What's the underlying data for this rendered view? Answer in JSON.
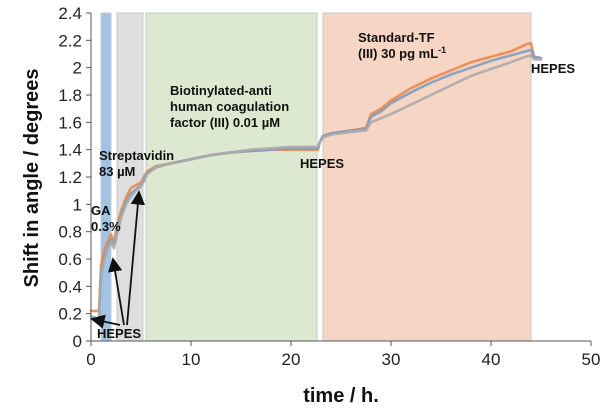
{
  "chart_data": {
    "type": "line",
    "xlabel": "time / h.",
    "ylabel": "Shift in angle / degrees",
    "xlim": [
      0,
      50
    ],
    "ylim": [
      0,
      2.4
    ],
    "x_ticks": [
      "0",
      "10",
      "20",
      "30",
      "40",
      "50"
    ],
    "y_ticks": [
      "0",
      "0.2",
      "0.4",
      "0.6",
      "0.8",
      "1",
      "1.2",
      "1.4",
      "1.6",
      "1.8",
      "2",
      "2.2",
      "2.4"
    ],
    "grid": false,
    "legend": "none",
    "regions": [
      {
        "start": 1.0,
        "end": 2.0,
        "color": "#9fc4e6"
      },
      {
        "start": 2.6,
        "end": 5.2,
        "color": "#dedede"
      },
      {
        "start": 5.5,
        "end": 22.6,
        "color": "#dce8cf"
      },
      {
        "start": 23.2,
        "end": 44.0,
        "color": "#f7d5c5"
      }
    ],
    "series": [
      {
        "color": "#e8894a",
        "x": [
          0.0,
          0.8,
          1.0,
          1.3,
          1.6,
          2.0,
          2.3,
          2.6,
          3.0,
          3.5,
          4.0,
          4.5,
          5.0,
          5.3,
          5.6,
          6.5,
          8,
          10,
          12,
          14,
          16,
          18,
          20,
          22,
          22.7,
          22.9,
          23.2,
          24,
          26,
          27.5,
          28,
          29,
          30,
          32,
          34,
          36,
          38,
          40,
          42,
          43.5,
          44,
          44.3,
          45
        ],
        "y": [
          0.22,
          0.22,
          0.55,
          0.66,
          0.72,
          0.78,
          0.72,
          0.85,
          0.95,
          1.05,
          1.12,
          1.14,
          1.16,
          1.2,
          1.24,
          1.28,
          1.3,
          1.33,
          1.36,
          1.38,
          1.39,
          1.4,
          1.4,
          1.4,
          1.4,
          1.46,
          1.5,
          1.52,
          1.54,
          1.56,
          1.66,
          1.7,
          1.76,
          1.85,
          1.92,
          1.98,
          2.04,
          2.08,
          2.12,
          2.17,
          2.18,
          2.08,
          2.07
        ]
      },
      {
        "color": "#7f9dbf",
        "x": [
          0.0,
          0.8,
          1.0,
          1.3,
          1.6,
          2.0,
          2.3,
          2.6,
          3.0,
          3.5,
          4.0,
          4.5,
          5.0,
          5.3,
          5.6,
          6.5,
          8,
          10,
          12,
          14,
          16,
          18,
          20,
          22,
          22.7,
          22.9,
          23.2,
          24,
          26,
          27.5,
          28,
          29,
          30,
          32,
          34,
          36,
          38,
          40,
          42,
          43.5,
          44,
          44.3,
          45
        ],
        "y": [
          0.18,
          0.16,
          0.5,
          0.6,
          0.68,
          0.74,
          0.7,
          0.8,
          0.92,
          1.02,
          1.08,
          1.11,
          1.14,
          1.18,
          1.23,
          1.27,
          1.3,
          1.33,
          1.36,
          1.38,
          1.39,
          1.4,
          1.41,
          1.41,
          1.41,
          1.46,
          1.5,
          1.52,
          1.54,
          1.55,
          1.64,
          1.68,
          1.74,
          1.82,
          1.89,
          1.95,
          2.0,
          2.05,
          2.09,
          2.12,
          2.13,
          2.08,
          2.07
        ]
      },
      {
        "color": "#aaaaaa",
        "x": [
          0.0,
          0.8,
          1.0,
          1.3,
          1.6,
          2.0,
          2.3,
          2.6,
          3.0,
          3.5,
          4.0,
          4.5,
          5.0,
          5.3,
          5.6,
          6.5,
          8,
          10,
          12,
          14,
          16,
          18,
          20,
          22,
          22.7,
          22.9,
          23.2,
          24,
          26,
          27.5,
          28,
          29,
          30,
          32,
          34,
          36,
          38,
          40,
          42,
          43.5,
          44,
          44.3,
          45
        ],
        "y": [
          0.16,
          0.15,
          0.48,
          0.58,
          0.66,
          0.72,
          0.68,
          0.78,
          0.9,
          1.0,
          1.06,
          1.1,
          1.13,
          1.17,
          1.22,
          1.27,
          1.3,
          1.33,
          1.36,
          1.38,
          1.4,
          1.41,
          1.42,
          1.42,
          1.42,
          1.46,
          1.49,
          1.51,
          1.53,
          1.54,
          1.6,
          1.63,
          1.66,
          1.73,
          1.8,
          1.87,
          1.94,
          1.99,
          2.04,
          2.08,
          2.09,
          2.06,
          2.06
        ]
      }
    ],
    "annotations": {
      "ga": [
        "GA",
        "0.3%"
      ],
      "streptavidin": [
        "Streptavidin",
        "83 µM"
      ],
      "biotin": [
        "Biotinylated-anti",
        "human coagulation",
        "factor (III) 0.01 µM"
      ],
      "hepes_1": "HEPES",
      "hepes_2": "HEPES",
      "hepes_3": "HEPES",
      "standard": "Standard-TF",
      "standard_conc": "(III) 30 pg mL",
      "standard_exp": "-1"
    }
  }
}
